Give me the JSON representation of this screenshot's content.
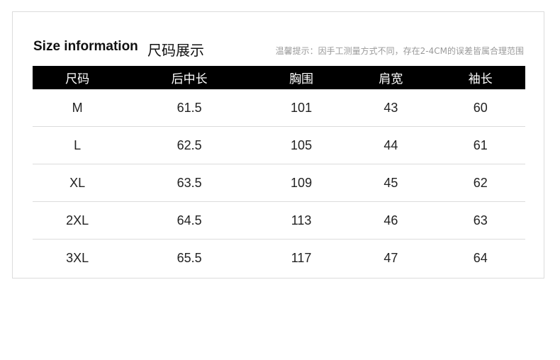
{
  "header": {
    "title_en": "Size information",
    "title_cn": "尺码展示",
    "notice": "温馨提示：因手工测量方式不同，存在2-4CM的误差皆属合理范围"
  },
  "table": {
    "columns": [
      "尺码",
      "后中长",
      "胸围",
      "肩宽",
      "袖长"
    ],
    "rows": [
      [
        "M",
        "61.5",
        "101",
        "43",
        "60"
      ],
      [
        "L",
        "62.5",
        "105",
        "44",
        "61"
      ],
      [
        "XL",
        "63.5",
        "109",
        "45",
        "62"
      ],
      [
        "2XL",
        "64.5",
        "113",
        "46",
        "63"
      ],
      [
        "3XL",
        "65.5",
        "117",
        "47",
        "64"
      ]
    ]
  },
  "colors": {
    "header_bg": "#000000",
    "header_text": "#ffffff",
    "notice": "#9a9a9a"
  }
}
